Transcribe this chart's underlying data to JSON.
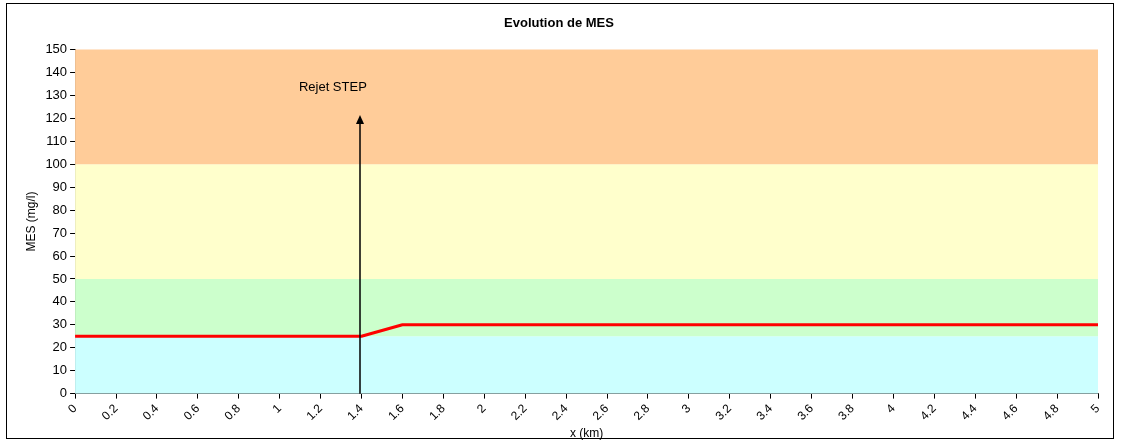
{
  "chart_data": {
    "type": "line",
    "title": "Evolution de MES",
    "xlabel": "x (km)",
    "ylabel": "MES (mg/l)",
    "x": [
      0,
      1.4,
      1.6,
      5
    ],
    "series": [
      {
        "color": "#ff0000",
        "values": [
          25,
          25,
          30,
          30
        ]
      }
    ],
    "xlim": [
      0,
      5
    ],
    "xticks": [
      0,
      0.2,
      0.4,
      0.6,
      0.8,
      1,
      1.2,
      1.4,
      1.6,
      1.8,
      2,
      2.2,
      2.4,
      2.6,
      2.8,
      3,
      3.2,
      3.4,
      3.6,
      3.8,
      4,
      4.2,
      4.4,
      4.6,
      4.8,
      5
    ],
    "ylim": [
      0,
      150
    ],
    "yticks": [
      0,
      10,
      20,
      30,
      40,
      50,
      60,
      70,
      80,
      90,
      100,
      110,
      120,
      130,
      140,
      150
    ],
    "bands": [
      {
        "axis": "y",
        "from": 0,
        "to": 25,
        "color": "#ccffff"
      },
      {
        "axis": "y",
        "from": 25,
        "to": 50,
        "color": "#ccffcc"
      },
      {
        "axis": "y",
        "from": 50,
        "to": 100,
        "color": "#ffffcc"
      },
      {
        "axis": "y",
        "from": 100,
        "to": 150,
        "color": "#ffcc99"
      }
    ],
    "annotations": [
      "Rejet STEP"
    ],
    "legend": false,
    "marker": "none",
    "line_style": "solid"
  }
}
